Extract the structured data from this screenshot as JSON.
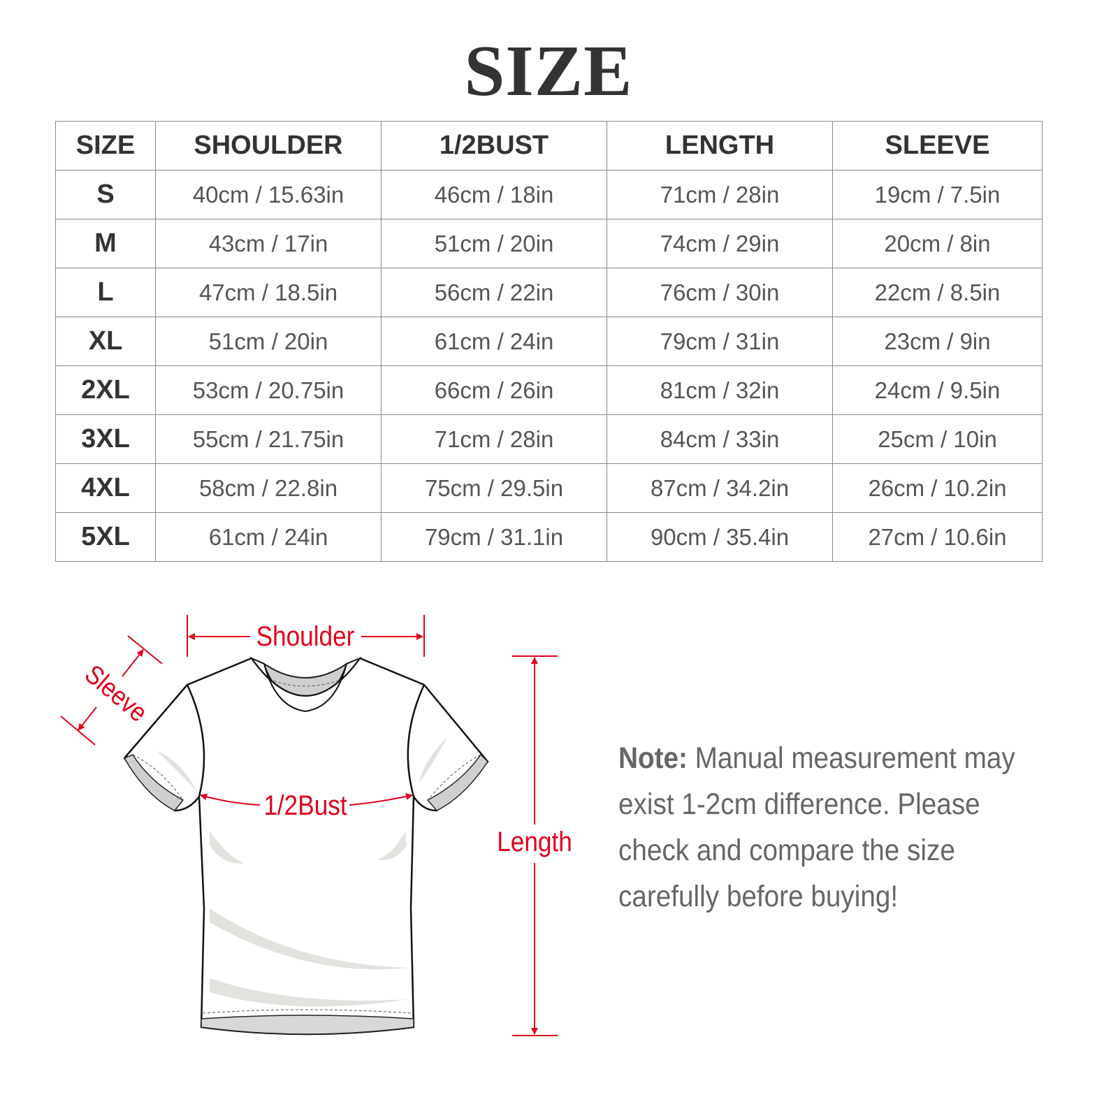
{
  "title": "SIZE",
  "table": {
    "headers": [
      "SIZE",
      "SHOULDER",
      "1/2BUST",
      "LENGTH",
      "SLEEVE"
    ],
    "rows": [
      [
        "S",
        "40cm / 15.63in",
        "46cm / 18in",
        "71cm / 28in",
        "19cm / 7.5in"
      ],
      [
        "M",
        "43cm / 17in",
        "51cm / 20in",
        "74cm / 29in",
        "20cm / 8in"
      ],
      [
        "L",
        "47cm / 18.5in",
        "56cm / 22in",
        "76cm / 30in",
        "22cm / 8.5in"
      ],
      [
        "XL",
        "51cm / 20in",
        "61cm / 24in",
        "79cm / 31in",
        "23cm / 9in"
      ],
      [
        "2XL",
        "53cm / 20.75in",
        "66cm / 26in",
        "81cm / 32in",
        "24cm / 9.5in"
      ],
      [
        "3XL",
        "55cm / 21.75in",
        "71cm / 28in",
        "84cm / 33in",
        "25cm / 10in"
      ],
      [
        "4XL",
        "58cm / 22.8in",
        "75cm / 29.5in",
        "87cm / 34.2in",
        "26cm / 10.2in"
      ],
      [
        "5XL",
        "61cm / 24in",
        "79cm / 31.1in",
        "90cm / 35.4in",
        "27cm / 10.6in"
      ]
    ]
  },
  "diagram": {
    "labels": {
      "shoulder": "Shoulder",
      "sleeve": "Sleeve",
      "bust": "1/2Bust",
      "length": "Length"
    },
    "accent_color": "#e0001b"
  },
  "note": {
    "label": "Note:",
    "text": " Manual measurement may exist 1-2cm difference. Please check and compare the size carefully before buying!"
  }
}
